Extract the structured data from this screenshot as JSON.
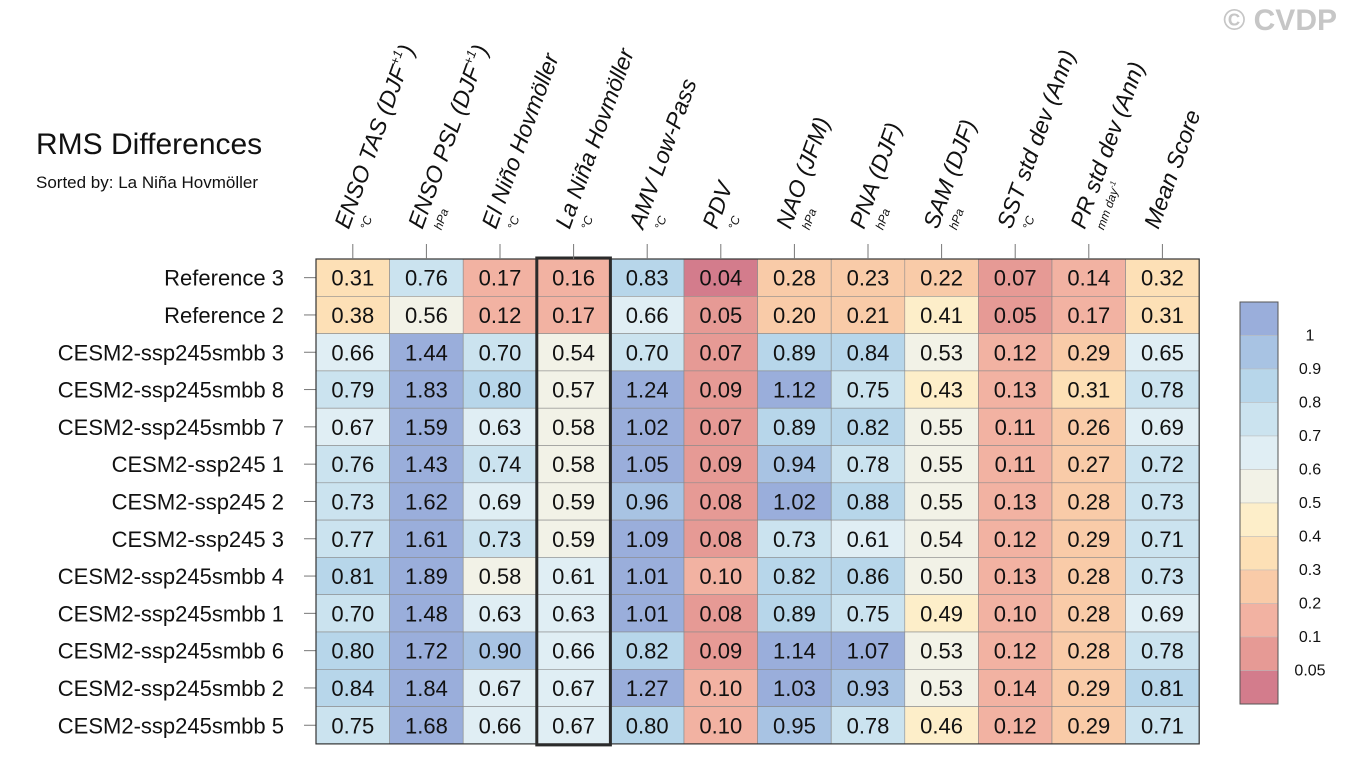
{
  "title": "RMS Differences",
  "subtitle": "Sorted by: La Niña Hovmöller",
  "copyright": "© CVDP",
  "chart_data": {
    "type": "heatmap",
    "title": "RMS Differences",
    "sorted_by": "La Niña Hovmöller",
    "highlighted_column": 3,
    "columns": [
      {
        "label": "ENSO TAS (DJF",
        "sup": "+1",
        "tail": ")",
        "unit": "°C"
      },
      {
        "label": "ENSO PSL (DJF",
        "sup": "+1",
        "tail": ")",
        "unit": "hPa"
      },
      {
        "label": "El Niño Hovmöller",
        "sup": "",
        "tail": "",
        "unit": "°C"
      },
      {
        "label": "La Niña Hovmöller",
        "sup": "",
        "tail": "",
        "unit": "°C"
      },
      {
        "label": "AMV Low-Pass",
        "sup": "",
        "tail": "",
        "unit": "°C"
      },
      {
        "label": "PDV",
        "sup": "",
        "tail": "",
        "unit": "°C"
      },
      {
        "label": "NAO (JFM)",
        "sup": "",
        "tail": "",
        "unit": "hPa"
      },
      {
        "label": "PNA (DJF)",
        "sup": "",
        "tail": "",
        "unit": "hPa"
      },
      {
        "label": "SAM (DJF)",
        "sup": "",
        "tail": "",
        "unit": "hPa"
      },
      {
        "label": "SST std dev (Ann)",
        "sup": "",
        "tail": "",
        "unit": "°C"
      },
      {
        "label": "PR std dev (Ann)",
        "sup": "",
        "tail": "",
        "unit": "mm day",
        "unit_sup": "-1"
      },
      {
        "label": "Mean Score",
        "sup": "",
        "tail": "",
        "unit": ""
      }
    ],
    "rows": [
      {
        "name": "Reference 3",
        "values": [
          "0.31",
          "0.76",
          "0.17",
          "0.16",
          "0.83",
          "0.04",
          "0.28",
          "0.23",
          "0.22",
          "0.07",
          "0.14",
          "0.32"
        ]
      },
      {
        "name": "Reference 2",
        "values": [
          "0.38",
          "0.56",
          "0.12",
          "0.17",
          "0.66",
          "0.05",
          "0.20",
          "0.21",
          "0.41",
          "0.05",
          "0.17",
          "0.31"
        ]
      },
      {
        "name": "CESM2-ssp245smbb 3",
        "values": [
          "0.66",
          "1.44",
          "0.70",
          "0.54",
          "0.70",
          "0.07",
          "0.89",
          "0.84",
          "0.53",
          "0.12",
          "0.29",
          "0.65"
        ]
      },
      {
        "name": "CESM2-ssp245smbb 8",
        "values": [
          "0.79",
          "1.83",
          "0.80",
          "0.57",
          "1.24",
          "0.09",
          "1.12",
          "0.75",
          "0.43",
          "0.13",
          "0.31",
          "0.78"
        ]
      },
      {
        "name": "CESM2-ssp245smbb 7",
        "values": [
          "0.67",
          "1.59",
          "0.63",
          "0.58",
          "1.02",
          "0.07",
          "0.89",
          "0.82",
          "0.55",
          "0.11",
          "0.26",
          "0.69"
        ]
      },
      {
        "name": "CESM2-ssp245 1",
        "values": [
          "0.76",
          "1.43",
          "0.74",
          "0.58",
          "1.05",
          "0.09",
          "0.94",
          "0.78",
          "0.55",
          "0.11",
          "0.27",
          "0.72"
        ]
      },
      {
        "name": "CESM2-ssp245 2",
        "values": [
          "0.73",
          "1.62",
          "0.69",
          "0.59",
          "0.96",
          "0.08",
          "1.02",
          "0.88",
          "0.55",
          "0.13",
          "0.28",
          "0.73"
        ]
      },
      {
        "name": "CESM2-ssp245 3",
        "values": [
          "0.77",
          "1.61",
          "0.73",
          "0.59",
          "1.09",
          "0.08",
          "0.73",
          "0.61",
          "0.54",
          "0.12",
          "0.29",
          "0.71"
        ]
      },
      {
        "name": "CESM2-ssp245smbb 4",
        "values": [
          "0.81",
          "1.89",
          "0.58",
          "0.61",
          "1.01",
          "0.10",
          "0.82",
          "0.86",
          "0.50",
          "0.13",
          "0.28",
          "0.73"
        ]
      },
      {
        "name": "CESM2-ssp245smbb 1",
        "values": [
          "0.70",
          "1.48",
          "0.63",
          "0.63",
          "1.01",
          "0.08",
          "0.89",
          "0.75",
          "0.49",
          "0.10",
          "0.28",
          "0.69"
        ]
      },
      {
        "name": "CESM2-ssp245smbb 6",
        "values": [
          "0.80",
          "1.72",
          "0.90",
          "0.66",
          "0.82",
          "0.09",
          "1.14",
          "1.07",
          "0.53",
          "0.12",
          "0.28",
          "0.78"
        ]
      },
      {
        "name": "CESM2-ssp245smbb 2",
        "values": [
          "0.84",
          "1.84",
          "0.67",
          "0.67",
          "1.27",
          "0.10",
          "1.03",
          "0.93",
          "0.53",
          "0.14",
          "0.29",
          "0.81"
        ]
      },
      {
        "name": "CESM2-ssp245smbb 5",
        "values": [
          "0.75",
          "1.68",
          "0.66",
          "0.67",
          "0.80",
          "0.10",
          "0.95",
          "0.78",
          "0.46",
          "0.12",
          "0.29",
          "0.71"
        ]
      }
    ],
    "colorbar": {
      "thresholds": [
        0.05,
        0.1,
        0.2,
        0.3,
        0.4,
        0.5,
        0.6,
        0.7,
        0.8,
        0.9,
        1
      ],
      "tick_labels": [
        "0.05",
        "0.1",
        "0.2",
        "0.3",
        "0.4",
        "0.5",
        "0.6",
        "0.7",
        "0.8",
        "0.9",
        "1"
      ],
      "colors": [
        "#d37c8c",
        "#e69a95",
        "#f2b2a2",
        "#f9cba8",
        "#fde0b6",
        "#fdeec9",
        "#f2f2e7",
        "#e0eef4",
        "#cbe3ef",
        "#b7d6ea",
        "#a8c3e3",
        "#9aaedb"
      ]
    }
  }
}
